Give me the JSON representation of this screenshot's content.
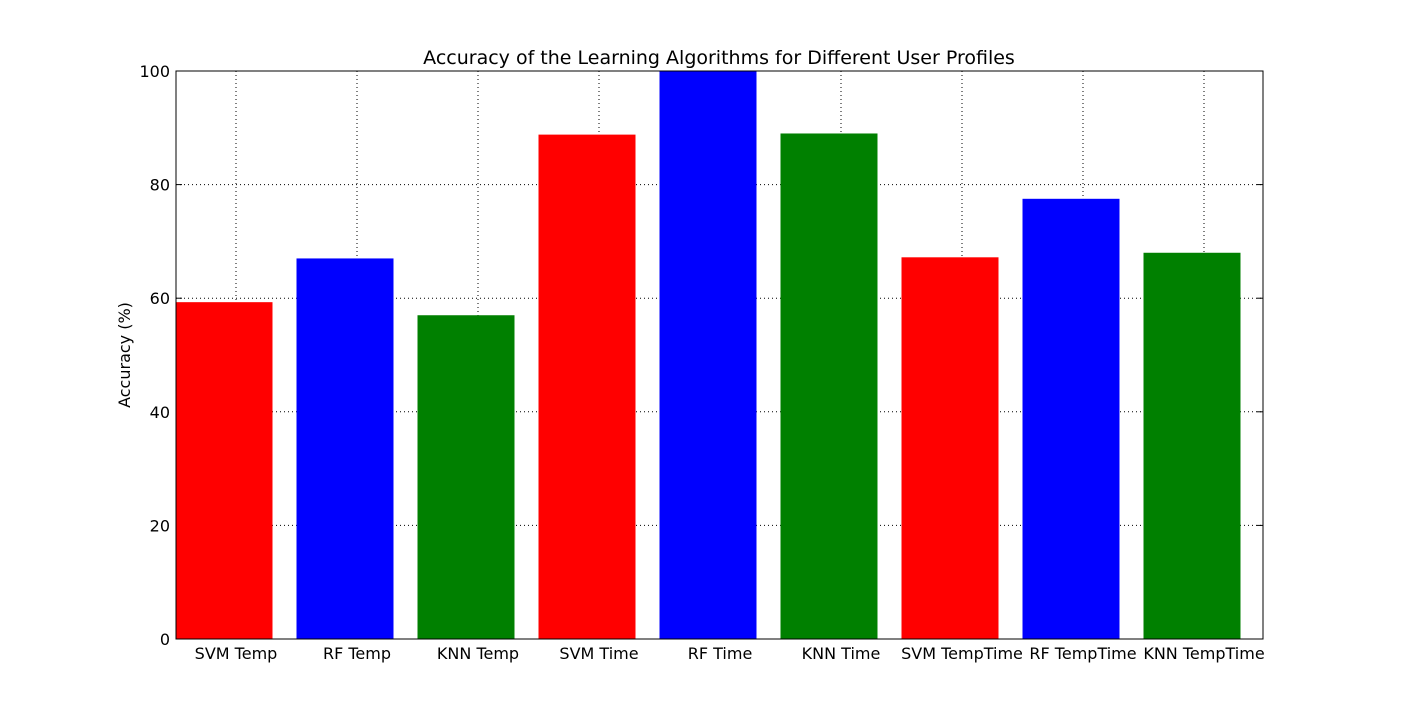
{
  "chart_data": {
    "type": "bar",
    "title": "Accuracy of the Learning Algorithms for Different User Profiles",
    "xlabel": "",
    "ylabel": "Accuracy (%)",
    "ylim": [
      0,
      100
    ],
    "yticks": [
      "0",
      "20",
      "40",
      "60",
      "80",
      "100"
    ],
    "grid": true,
    "categories": [
      "SVM Temp",
      "RF Temp",
      "KNN Temp",
      "SVM Time",
      "RF Time",
      "KNN Time",
      "SVM TempTime",
      "RF TempTime",
      "KNN TempTime"
    ],
    "values": [
      59.3,
      67.0,
      57.0,
      88.8,
      100.0,
      89.0,
      67.2,
      77.5,
      68.0
    ],
    "colors": [
      "#ff0000",
      "#0000ff",
      "#008000",
      "#ff0000",
      "#0000ff",
      "#008000",
      "#ff0000",
      "#0000ff",
      "#008000"
    ]
  }
}
